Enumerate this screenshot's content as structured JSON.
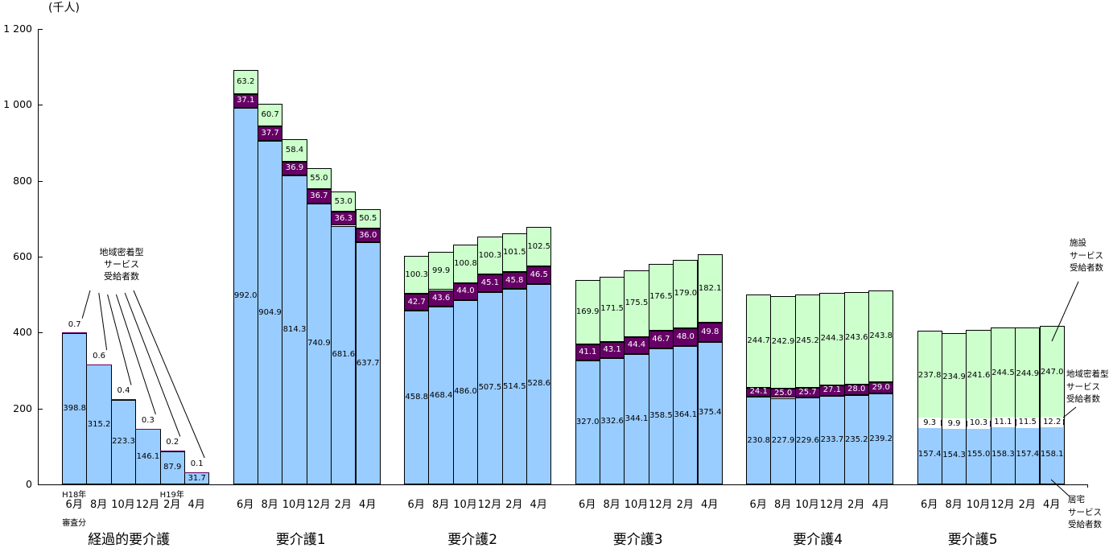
{
  "unit_label": "(千人)",
  "chart_data": {
    "type": "bar",
    "subtype": "stacked-column",
    "title": "",
    "ylabel": "(千人)",
    "ylim": [
      0,
      1200
    ],
    "grid": false,
    "legend_position": "annotations-on-plot",
    "y_ticks": [
      {
        "value": 0,
        "label": "0"
      },
      {
        "value": 200,
        "label": "200"
      },
      {
        "value": 400,
        "label": "400"
      },
      {
        "value": 600,
        "label": "600"
      },
      {
        "value": 800,
        "label": "800"
      },
      {
        "value": 1000,
        "label": "1 000"
      },
      {
        "value": 1200,
        "label": "1 200"
      }
    ],
    "colors": {
      "home_service": "#99CCFF",
      "community_service": "#660066",
      "facility_service": "#CCFFCC",
      "border": "#000000"
    },
    "series_names": {
      "home_service": "居宅サービス受給者数",
      "community_service": "地域密着型サービス受給者数",
      "facility_service": "施設サービス受給者数"
    },
    "months": [
      "6月",
      "8月",
      "10月",
      "12月",
      "2月",
      "4月"
    ],
    "groups": [
      {
        "label": "経過的要介護",
        "era_left": "H18年",
        "era_right": "H19年",
        "note": "審査分",
        "community_label_style": "above",
        "home": [
          "398.8",
          "315.2",
          "223.3",
          "146.1",
          "87.9",
          "31.7"
        ],
        "community": [
          "0.7",
          "0.6",
          "0.4",
          "0.3",
          "0.2",
          "0.1"
        ],
        "facility": null
      },
      {
        "label": "要介護1",
        "community_label_style": "inside",
        "home": [
          "992.0",
          "904.9",
          "814.3",
          "740.9",
          "681.6",
          "637.7"
        ],
        "community": [
          "37.1",
          "37.7",
          "36.9",
          "36.7",
          "36.3",
          "36.0"
        ],
        "facility": [
          "63.2",
          "60.7",
          "58.4",
          "55.0",
          "53.0",
          "50.5"
        ]
      },
      {
        "label": "要介護2",
        "community_label_style": "inside",
        "home": [
          "458.8",
          "468.4",
          "486.0",
          "507.5",
          "514.5",
          "528.6"
        ],
        "community": [
          "42.7",
          "43.6",
          "44.0",
          "45.1",
          "45.8",
          "46.5"
        ],
        "facility": [
          "100.3",
          "99.9",
          "100.8",
          "100.3",
          "101.5",
          "102.5"
        ]
      },
      {
        "label": "要介護3",
        "community_label_style": "inside",
        "home": [
          "327.0",
          "332.6",
          "344.1",
          "358.5",
          "364.1",
          "375.4"
        ],
        "community": [
          "41.1",
          "43.1",
          "44.4",
          "46.7",
          "48.0",
          "49.8"
        ],
        "facility": [
          "169.9",
          "171.5",
          "175.5",
          "176.5",
          "179.0",
          "182.1"
        ]
      },
      {
        "label": "要介護4",
        "community_label_style": "inside",
        "home": [
          "230.8",
          "227.9",
          "229.6",
          "233.7",
          "235.2",
          "239.2"
        ],
        "community": [
          "24.1",
          "25.0",
          "25.7",
          "27.1",
          "28.0",
          "29.0"
        ],
        "facility": [
          "244.7",
          "242.9",
          "245.2",
          "244.3",
          "243.6",
          "243.8"
        ]
      },
      {
        "label": "要介護5",
        "community_label_style": "boxed",
        "home": [
          "157.4",
          "154.3",
          "155.0",
          "158.3",
          "157.4",
          "158.1"
        ],
        "community": [
          "9.3",
          "9.9",
          "10.3",
          "11.1",
          "11.5",
          "12.2"
        ],
        "facility": [
          "237.8",
          "234.9",
          "241.6",
          "244.5",
          "244.9",
          "247.0"
        ]
      }
    ],
    "annotations": {
      "community_left": [
        "地域密着型",
        "サービス",
        "受給者数"
      ],
      "facility_right": [
        "施設",
        "サービス",
        "受給者数"
      ],
      "community_right": [
        "地域密着型",
        "サービス",
        "受給者数"
      ],
      "home_right": [
        "居宅",
        "サービス",
        "受給者数"
      ]
    }
  }
}
